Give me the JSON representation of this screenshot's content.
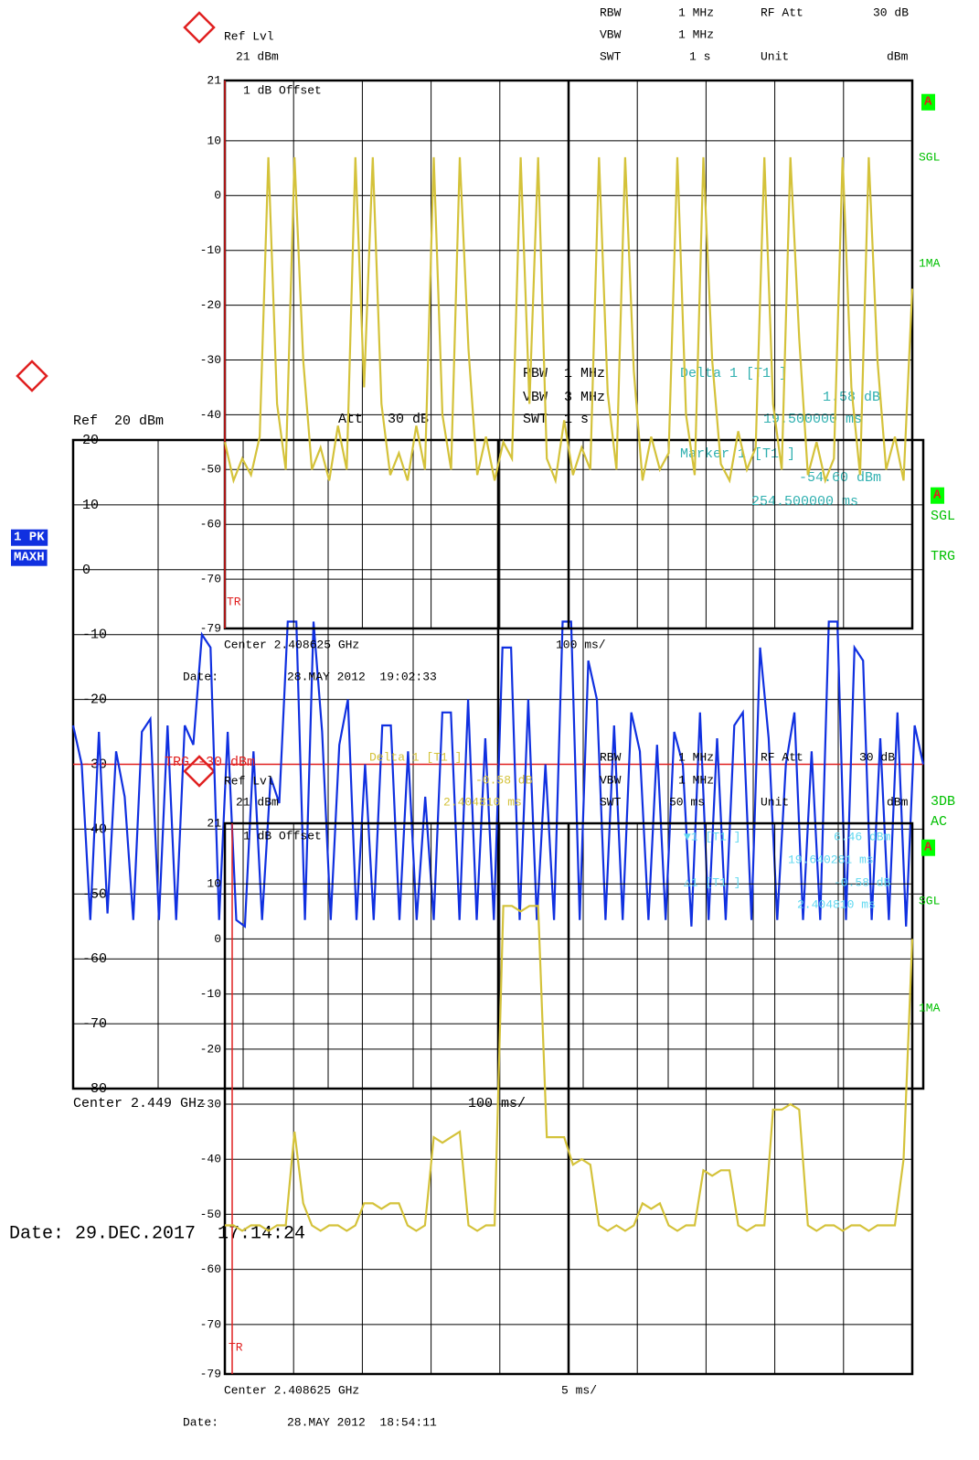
{
  "chart_data": [
    {
      "type": "line",
      "color": "#d4c23a",
      "ylim": [
        -79,
        21
      ],
      "yticks": [
        21,
        10,
        0,
        -10,
        -20,
        -30,
        -40,
        -50,
        -60,
        -70,
        -79
      ],
      "values": [
        -45,
        -52,
        -48,
        -51,
        -44,
        7,
        -38,
        -50,
        7,
        -30,
        -50,
        -46,
        -52,
        -42,
        -50,
        7,
        -35,
        7,
        -38,
        -51,
        -47,
        -52,
        -42,
        -50,
        7,
        -40,
        -50,
        7,
        -28,
        -51,
        -44,
        -52,
        -45,
        -48,
        7,
        -38,
        7,
        -48,
        -52,
        -41,
        -51,
        -46,
        -50,
        7,
        -36,
        -50,
        7,
        -32,
        -52,
        -44,
        -50,
        -47,
        7,
        -40,
        -51,
        7,
        -30,
        -49,
        -52,
        -43,
        -50,
        -46,
        7,
        -38,
        -50,
        7,
        -26,
        -51,
        -45,
        -52,
        -48,
        7,
        -35,
        -51,
        7,
        -30,
        -50,
        -44,
        -52,
        -17
      ],
      "annotations": [
        "Ref Lvl",
        "21 dBm",
        "RBW",
        "1 MHz",
        "RF Att",
        "30 dB",
        "VBW",
        "1 MHz",
        "SWT",
        "1 s",
        "Unit",
        "dBm",
        "1 dB Offset",
        "A",
        "SGL",
        "1MA",
        "TR",
        "Center 2.408625 GHz",
        "100 ms/",
        "Date:",
        "28.MAY 2012  19:02:33"
      ]
    },
    {
      "type": "line",
      "color": "#1030e0",
      "ylim": [
        -80,
        20
      ],
      "yticks": [
        20,
        10,
        0,
        -10,
        -20,
        -30,
        -40,
        -50,
        -60,
        -70,
        -80
      ],
      "trigger_level": -30,
      "values": [
        -24,
        -30,
        -54,
        -25,
        -53,
        -28,
        -35,
        -54,
        -25,
        -23,
        -54,
        -24,
        -54,
        -24,
        -27,
        -10,
        -12,
        -54,
        -25,
        -54,
        -55,
        -28,
        -54,
        -32,
        -36,
        -8,
        -8,
        -54,
        -8,
        -25,
        -54,
        -27,
        -20,
        -54,
        -30,
        -54,
        -24,
        -24,
        -54,
        -28,
        -54,
        -35,
        -54,
        -22,
        -22,
        -54,
        -20,
        -54,
        -26,
        -54,
        -12,
        -12,
        -54,
        -20,
        -54,
        -30,
        -54,
        -8,
        -8,
        -54,
        -14,
        -20,
        -54,
        -24,
        -54,
        -22,
        -28,
        -54,
        -27,
        -54,
        -25,
        -30,
        -55,
        -22,
        -54,
        -26,
        -54,
        -24,
        -22,
        -54,
        -12,
        -26,
        -54,
        -30,
        -22,
        -54,
        -28,
        -54,
        -8,
        -8,
        -54,
        -12,
        -14,
        -54,
        -26,
        -54,
        -22,
        -55,
        -24,
        -30
      ],
      "annotations": [
        "Ref  20 dBm",
        "RBW  1 MHz",
        "VBW  3 MHz",
        "Att   30 dB",
        "SWT  1 s",
        "Delta 1 [T1 ]",
        "1.58 dB",
        "19.500000 ms",
        "Marker 1 [T1 ]",
        "-54.60 dBm",
        "254.500000 ms",
        "1 PK",
        "MAXH",
        "A",
        "SGL",
        "TRG",
        "3DB",
        "AC",
        "TRG -30 dBm",
        "Center 2.449 GHz",
        "100 ms/",
        "Date: 29.DEC.2017  17:14:24"
      ]
    },
    {
      "type": "line",
      "color": "#d4c23a",
      "ylim": [
        -79,
        21
      ],
      "yticks": [
        21,
        10,
        0,
        -10,
        -20,
        -30,
        -40,
        -50,
        -60,
        -70,
        -79
      ],
      "values": [
        -52,
        -52,
        -53,
        -52,
        -52,
        -53,
        -52,
        -52,
        -35,
        -48,
        -52,
        -53,
        -52,
        -52,
        -53,
        -52,
        -48,
        -48,
        -49,
        -48,
        -48,
        -52,
        -53,
        -52,
        -36,
        -37,
        -36,
        -35,
        -52,
        -53,
        -52,
        -52,
        6,
        6,
        5,
        6,
        6,
        -36,
        -36,
        -36,
        -41,
        -40,
        -41,
        -52,
        -53,
        -52,
        -53,
        -52,
        -48,
        -49,
        -48,
        -52,
        -53,
        -52,
        -52,
        -42,
        -43,
        -42,
        -42,
        -52,
        -53,
        -52,
        -52,
        -31,
        -31,
        -30,
        -31,
        -52,
        -53,
        -52,
        -52,
        -53,
        -52,
        -52,
        -53,
        -52,
        -52,
        -52,
        -40,
        0
      ],
      "annotations": [
        "Ref Lvl",
        "21 dBm",
        "RBW",
        "1 MHz",
        "RF Att",
        "30 dB",
        "VBW",
        "1 MHz",
        "SWT",
        "50 ms",
        "Unit",
        "dBm",
        "Delta 1 [T1 ]",
        "-0.58 dB",
        "2.404810 ms",
        "1 dB Offset",
        "▼1 [T1 ]",
        "6.46 dBm",
        "19.640281 ms",
        "△1 [T1 ]",
        "-0.58 dB",
        "2.404810 ms",
        "A",
        "SGL",
        "1MA",
        "TR",
        "Center 2.408625 GHz",
        "5 ms/",
        "Date:",
        "28.MAY 2012  18:54:11"
      ]
    }
  ]
}
